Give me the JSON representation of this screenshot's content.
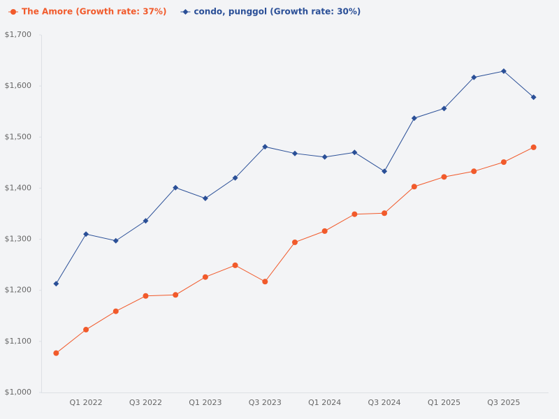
{
  "chart_data": {
    "type": "line",
    "categories": [
      null,
      "Q1 2022",
      null,
      "Q3 2022",
      null,
      "Q1 2023",
      null,
      "Q3 2023",
      null,
      "Q1 2024",
      null,
      "Q3 2024",
      null,
      "Q1 2025",
      null,
      "Q3 2025",
      null
    ],
    "series": [
      {
        "name": "The Amore (Growth rate: 37%)",
        "color": "#f15a2b",
        "marker": "circle",
        "values": [
          1077,
          1123,
          1159,
          1189,
          1191,
          1226,
          1249,
          1217,
          1294,
          1316,
          1349,
          1351,
          1403,
          1422,
          1433,
          1451,
          1480
        ]
      },
      {
        "name": "condo, punggol (Growth rate: 30%)",
        "color": "#2a4f97",
        "marker": "diamond",
        "values": [
          1213,
          1310,
          1297,
          1336,
          1401,
          1380,
          1420,
          1481,
          1468,
          1461,
          1470,
          1433,
          1537,
          1556,
          1617,
          1629,
          1578
        ]
      }
    ],
    "ylim": [
      1000,
      1700
    ],
    "yticks": [
      {
        "value": 1000,
        "label": "$1,000"
      },
      {
        "value": 1100,
        "label": "$1,100"
      },
      {
        "value": 1200,
        "label": "$1,200"
      },
      {
        "value": 1300,
        "label": "$1,300"
      },
      {
        "value": 1400,
        "label": "$1,400"
      },
      {
        "value": 1500,
        "label": "$1,500"
      },
      {
        "value": 1600,
        "label": "$1,600"
      },
      {
        "value": 1700,
        "label": "$1,700"
      }
    ],
    "grid": false,
    "legend": "top-left"
  }
}
